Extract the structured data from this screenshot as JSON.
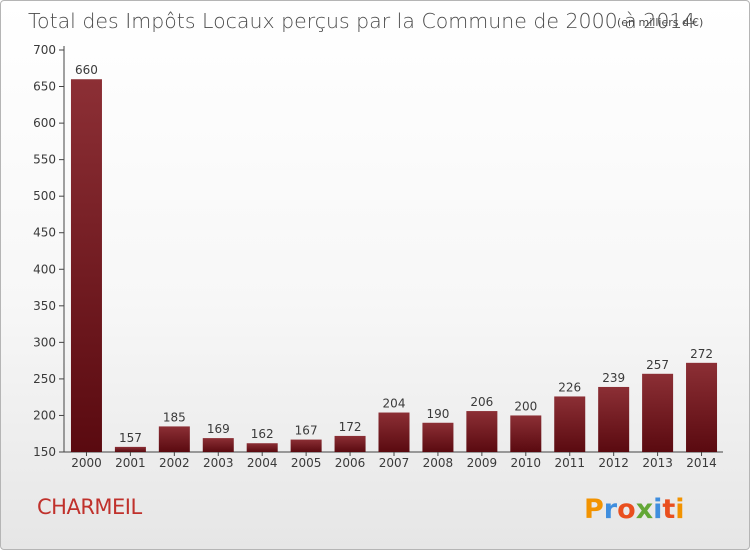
{
  "header": {
    "title": "Total des Impôts Locaux perçus par la Commune de 2000 à 2014",
    "unit": "(en milliers d'€)"
  },
  "footer": {
    "commune": "CHARMEIL",
    "logo": "Proxiti"
  },
  "colors": {
    "bar_light": "#8c2f35",
    "bar_dark": "#5a0a10",
    "commune_text": "#c0312c",
    "logo_letters": [
      "#f29300",
      "#3f8ede",
      "#e94f1e",
      "#63a736",
      "#3f8ede",
      "#e94f1e",
      "#f29300"
    ]
  },
  "chart_data": {
    "type": "bar",
    "title": "Total des Impôts Locaux perçus par la Commune de 2000 à 2014",
    "subtitle": "(en milliers d'€)",
    "categories": [
      "2000",
      "2001",
      "2002",
      "2003",
      "2004",
      "2005",
      "2006",
      "2007",
      "2008",
      "2009",
      "2010",
      "2011",
      "2012",
      "2013",
      "2014"
    ],
    "values": [
      660,
      157,
      185,
      169,
      162,
      167,
      172,
      204,
      190,
      206,
      200,
      226,
      239,
      257,
      272
    ],
    "ylim": [
      150,
      700
    ],
    "yticks": [
      150,
      200,
      250,
      300,
      350,
      400,
      450,
      500,
      550,
      600,
      650,
      700
    ],
    "xlabel": "",
    "ylabel": "",
    "grid": false,
    "data_labels": true
  }
}
